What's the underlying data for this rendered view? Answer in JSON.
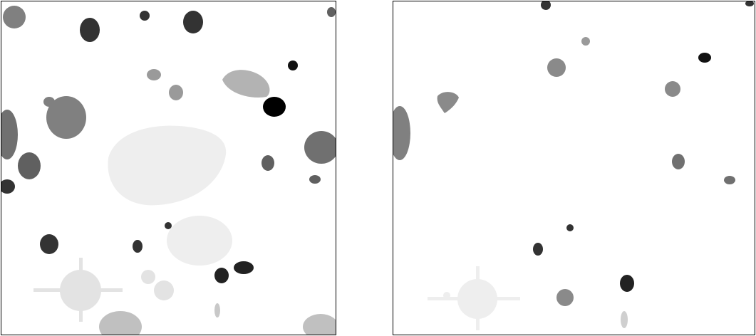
{
  "figure": {
    "panel_count": 2,
    "description_colors": {
      "background": "#ffffff",
      "frame": "#000000",
      "light_blob": "#eeeeee",
      "mid_light_blob": "#b3b3b3",
      "mid_blob": "#808080",
      "dark_blob": "#333333",
      "black_blob": "#000000"
    }
  }
}
